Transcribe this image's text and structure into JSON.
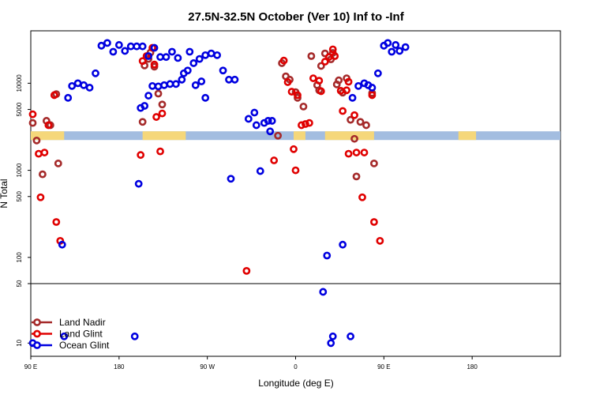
{
  "chart_data": {
    "type": "scatter",
    "title": "27.5N-32.5N October (Ver 10)   Inf to -Inf",
    "xlabel": "Longitude (deg E)",
    "ylabel": "N Total",
    "xlim": [
      -90,
      180
    ],
    "ylim_log": [
      7,
      40000
    ],
    "x_ticks": [
      {
        "value": -90,
        "label": "90 E"
      },
      {
        "value": -45,
        "label": "180"
      },
      {
        "value": 0,
        "label": "90 W"
      },
      {
        "value": 45,
        "label": "0"
      },
      {
        "value": 90,
        "label": "90 E"
      },
      {
        "value": 135,
        "label": "180"
      }
    ],
    "y_ticks_upper": [
      {
        "value": 10000,
        "label": "10000"
      },
      {
        "value": 5000,
        "label": "5000"
      },
      {
        "value": 1000,
        "label": "1000"
      },
      {
        "value": 500,
        "label": "500"
      },
      {
        "value": 100,
        "label": "100"
      },
      {
        "value": 50,
        "label": "50"
      }
    ],
    "y_ticks_lower": [
      {
        "value": 10,
        "label": "10"
      }
    ],
    "split_value": 50,
    "land_band": {
      "value": 2500,
      "ocean_color": "#a3bde0",
      "land_color": "#f5d77a",
      "land_segments": [
        [
          -90,
          -73
        ],
        [
          -33,
          -11
        ],
        [
          44,
          50
        ],
        [
          60,
          85
        ],
        [
          128,
          137
        ]
      ]
    },
    "series": [
      {
        "name": "Land Nadir",
        "color": "#a52a2a",
        "points": [
          [
            -89,
            3500
          ],
          [
            -87,
            2200
          ],
          [
            -84,
            900
          ],
          [
            -82,
            3700
          ],
          [
            -80,
            3300
          ],
          [
            -77,
            7500
          ],
          [
            -76,
            1200
          ],
          [
            -33,
            3600
          ],
          [
            -32,
            16000
          ],
          [
            -30,
            19000
          ],
          [
            -29,
            22500
          ],
          [
            -27,
            15500
          ],
          [
            -25,
            7600
          ],
          [
            -23,
            5700
          ],
          [
            36,
            2500
          ],
          [
            38,
            17000
          ],
          [
            40,
            12000
          ],
          [
            42,
            11000
          ],
          [
            45,
            7900
          ],
          [
            46,
            6800
          ],
          [
            49,
            5400
          ],
          [
            53,
            20500
          ],
          [
            56,
            9500
          ],
          [
            57,
            8300
          ],
          [
            58,
            15800
          ],
          [
            60,
            22000
          ],
          [
            63,
            18800
          ],
          [
            64,
            22300
          ],
          [
            66,
            9700
          ],
          [
            67,
            10800
          ],
          [
            69,
            7800
          ],
          [
            71,
            11400
          ],
          [
            73,
            3800
          ],
          [
            75,
            2300
          ],
          [
            76,
            850
          ],
          [
            78,
            3600
          ],
          [
            81,
            3300
          ],
          [
            84,
            7700
          ],
          [
            85,
            1200
          ]
        ]
      },
      {
        "name": "Land Glint",
        "color": "#e00000",
        "points": [
          [
            -89,
            4400
          ],
          [
            -86,
            1550
          ],
          [
            -85,
            490
          ],
          [
            -83,
            1600
          ],
          [
            -81,
            3300
          ],
          [
            -78,
            7300
          ],
          [
            -77,
            255
          ],
          [
            -75,
            155
          ],
          [
            -34,
            1500
          ],
          [
            -33,
            18000
          ],
          [
            -31,
            20500
          ],
          [
            -28,
            25500
          ],
          [
            -27,
            16400
          ],
          [
            -26,
            4100
          ],
          [
            -24,
            1650
          ],
          [
            -23,
            4500
          ],
          [
            20,
            70
          ],
          [
            34,
            1300
          ],
          [
            39,
            18200
          ],
          [
            41,
            10300
          ],
          [
            43,
            8000
          ],
          [
            44,
            1750
          ],
          [
            45,
            1000
          ],
          [
            46,
            7300
          ],
          [
            48,
            3300
          ],
          [
            50,
            3400
          ],
          [
            52,
            3500
          ],
          [
            54,
            11400
          ],
          [
            57,
            10700
          ],
          [
            58,
            8100
          ],
          [
            60,
            17700
          ],
          [
            62,
            20000
          ],
          [
            64,
            24500
          ],
          [
            65,
            20500
          ],
          [
            68,
            8200
          ],
          [
            69,
            4800
          ],
          [
            71,
            8300
          ],
          [
            72,
            10400
          ],
          [
            72,
            1550
          ],
          [
            75,
            4300
          ],
          [
            76,
            1600
          ],
          [
            79,
            490
          ],
          [
            80,
            1600
          ],
          [
            84,
            7300
          ],
          [
            85,
            255
          ],
          [
            88,
            155
          ]
        ]
      },
      {
        "name": "Ocean Glint",
        "color": "#0000e0",
        "points": [
          [
            -89,
            10
          ],
          [
            -73,
            12
          ],
          [
            -74,
            140
          ],
          [
            -71,
            6800
          ],
          [
            -69,
            9300
          ],
          [
            -66,
            10000
          ],
          [
            -63,
            9500
          ],
          [
            -60,
            8900
          ],
          [
            -57,
            13000
          ],
          [
            -54,
            27000
          ],
          [
            -51,
            29000
          ],
          [
            -48,
            23000
          ],
          [
            -45,
            27500
          ],
          [
            -42,
            23500
          ],
          [
            -39,
            26500
          ],
          [
            -36,
            26500
          ],
          [
            -33,
            26500
          ],
          [
            -30,
            20500
          ],
          [
            -27,
            25500
          ],
          [
            -24,
            20000
          ],
          [
            -21,
            20000
          ],
          [
            -18,
            23000
          ],
          [
            -15,
            19500
          ],
          [
            -12,
            13000
          ],
          [
            -9,
            23000
          ],
          [
            -6,
            9500
          ],
          [
            -3,
            10500
          ],
          [
            -1,
            6800
          ],
          [
            -37,
            12
          ],
          [
            -35,
            700
          ],
          [
            -34,
            5200
          ],
          [
            -32,
            5500
          ],
          [
            -30,
            7200
          ],
          [
            -28,
            9300
          ],
          [
            -25,
            9200
          ],
          [
            -22,
            9500
          ],
          [
            -19,
            9800
          ],
          [
            -16,
            9800
          ],
          [
            -13,
            11000
          ],
          [
            -10,
            14000
          ],
          [
            -7,
            17000
          ],
          [
            -4,
            19000
          ],
          [
            -1,
            21000
          ],
          [
            2,
            22000
          ],
          [
            5,
            21000
          ],
          [
            8,
            14000
          ],
          [
            11,
            11000
          ],
          [
            14,
            11000
          ],
          [
            12,
            800
          ],
          [
            21,
            3900
          ],
          [
            24,
            4600
          ],
          [
            25,
            3300
          ],
          [
            27,
            980
          ],
          [
            29,
            3500
          ],
          [
            31,
            3700
          ],
          [
            32,
            2800
          ],
          [
            33,
            3700
          ],
          [
            59,
            40
          ],
          [
            61,
            105
          ],
          [
            63,
            10
          ],
          [
            64,
            12
          ],
          [
            69,
            140
          ],
          [
            73,
            12
          ],
          [
            74,
            6800
          ],
          [
            77,
            9300
          ],
          [
            80,
            10000
          ],
          [
            82,
            9500
          ],
          [
            84,
            8900
          ],
          [
            87,
            13000
          ],
          [
            90,
            27000
          ],
          [
            92,
            29000
          ],
          [
            94,
            23000
          ],
          [
            96,
            27500
          ],
          [
            98,
            23500
          ],
          [
            101,
            26000
          ]
        ]
      }
    ],
    "legend": {
      "position": "bottom-left",
      "entries": [
        "Land Nadir",
        "Land Glint",
        "Ocean Glint"
      ]
    }
  }
}
